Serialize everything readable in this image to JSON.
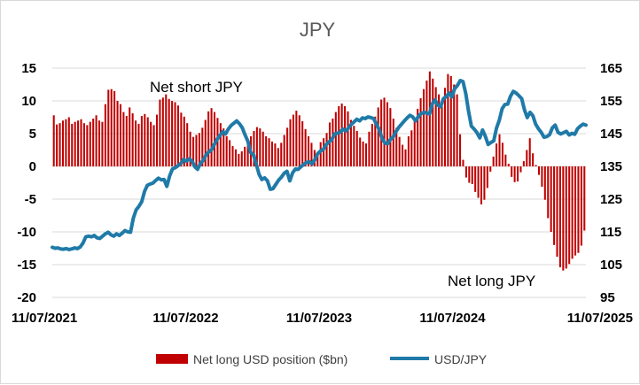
{
  "chart_data": {
    "type": "bar+line",
    "title": "JPY",
    "x_tick_labels": [
      "11/07/2021",
      "11/07/2022",
      "11/07/2023",
      "11/07/2024",
      "11/07/2025"
    ],
    "y_left": {
      "ticks": [
        15,
        10,
        5,
        0,
        -5,
        -10,
        -15,
        -20
      ],
      "ylim": [
        -20,
        15
      ]
    },
    "y_right": {
      "ticks": [
        165,
        155,
        145,
        135,
        125,
        115,
        105,
        95
      ],
      "ylim": [
        95,
        165
      ]
    },
    "grid": true,
    "legend_position": "bottom",
    "annotations": [
      {
        "key": "net_short",
        "text": "Net short JPY"
      },
      {
        "key": "net_long",
        "text": "Net long JPY"
      }
    ],
    "series": [
      {
        "name": "Net long USD position ($bn)",
        "type": "bar",
        "axis": "left",
        "color": "#c00000",
        "values": [
          7.8,
          6.4,
          6.6,
          7.0,
          7.2,
          7.5,
          6.5,
          6.8,
          7.0,
          7.2,
          6.6,
          6.3,
          6.8,
          7.3,
          7.8,
          7.0,
          6.8,
          9.5,
          11.7,
          11.8,
          11.5,
          10.0,
          9.5,
          8.3,
          7.7,
          9.0,
          8.1,
          7.0,
          6.5,
          7.7,
          8.0,
          7.5,
          6.8,
          6.3,
          7.9,
          10.2,
          10.5,
          11.0,
          10.3,
          10.0,
          9.8,
          9.3,
          8.2,
          7.6,
          6.6,
          5.3,
          4.5,
          4.8,
          5.1,
          5.9,
          7.1,
          8.4,
          8.9,
          8.3,
          7.4,
          6.6,
          5.8,
          4.6,
          4.0,
          3.1,
          2.6,
          1.9,
          2.3,
          3.0,
          3.7,
          4.6,
          5.4,
          6.0,
          5.8,
          5.3,
          4.6,
          4.3,
          3.8,
          3.5,
          2.8,
          3.6,
          4.8,
          5.9,
          7.2,
          7.9,
          8.5,
          7.8,
          6.9,
          5.7,
          4.6,
          3.6,
          2.5,
          2.0,
          3.7,
          4.3,
          5.1,
          6.7,
          7.3,
          8.3,
          9.2,
          9.6,
          9.2,
          8.4,
          7.1,
          6.2,
          5.4,
          4.4,
          3.8,
          3.5,
          5.3,
          6.5,
          7.6,
          9.0,
          10.2,
          10.5,
          9.8,
          8.9,
          7.3,
          5.9,
          4.5,
          3.3,
          2.6,
          4.6,
          5.5,
          7.3,
          8.8,
          10.4,
          11.8,
          13.1,
          14.5,
          13.4,
          12.1,
          11.0,
          10.0,
          12.0,
          14.1,
          13.8,
          12.5,
          11.0,
          4.9,
          1.0,
          -1.7,
          -2.5,
          -2.7,
          -3.9,
          -4.8,
          -5.8,
          -5.1,
          -3.3,
          -0.8,
          1.5,
          3.5,
          4.9,
          3.6,
          1.8,
          0.4,
          -1.6,
          -2.4,
          -2.3,
          -0.9,
          0.8,
          2.5,
          4.3,
          2.0,
          0.2,
          -1.3,
          -3.1,
          -5.1,
          -7.9,
          -10.0,
          -12.0,
          -13.8,
          -15.4,
          -15.9,
          -15.6,
          -14.9,
          -14.1,
          -13.6,
          -13.2,
          -12.1,
          -9.8
        ]
      },
      {
        "name": "USD/JPY",
        "type": "line",
        "axis": "right",
        "color": "#1f7aa8",
        "values": [
          110.3,
          110.0,
          110.1,
          109.8,
          109.7,
          109.9,
          109.6,
          109.8,
          110.1,
          109.9,
          110.4,
          111.6,
          113.5,
          113.7,
          113.5,
          113.9,
          113.2,
          113.0,
          113.7,
          114.4,
          114.9,
          114.1,
          113.7,
          114.4,
          113.9,
          114.6,
          115.4,
          115.0,
          114.9,
          119.2,
          121.7,
          122.8,
          124.2,
          127.3,
          129.2,
          129.6,
          129.9,
          130.7,
          131.4,
          130.9,
          131.0,
          128.9,
          132.1,
          134.2,
          134.6,
          135.2,
          135.9,
          137.1,
          136.6,
          137.3,
          136.7,
          134.9,
          134.1,
          135.9,
          136.8,
          138.5,
          139.4,
          140.1,
          141.7,
          143.3,
          144.4,
          145.6,
          144.9,
          146.4,
          147.5,
          148.2,
          148.9,
          148.0,
          146.8,
          144.6,
          142.7,
          139.2,
          138.6,
          135.7,
          132.6,
          131.0,
          131.5,
          130.6,
          128.0,
          128.2,
          129.5,
          130.8,
          131.7,
          132.9,
          133.5,
          130.6,
          133.0,
          134.2,
          134.1,
          134.9,
          135.6,
          136.2,
          136.4,
          135.8,
          137.1,
          138.9,
          139.7,
          140.2,
          141.6,
          142.5,
          143.1,
          144.9,
          145.1,
          145.4,
          146.4,
          145.8,
          146.7,
          147.8,
          148.6,
          149.4,
          148.9,
          149.8,
          149.6,
          150.1,
          149.9,
          149.6,
          147.9,
          146.3,
          143.6,
          142.2,
          141.9,
          143.2,
          144.0,
          145.6,
          146.9,
          147.9,
          148.9,
          149.8,
          150.6,
          150.1,
          148.9,
          150.2,
          151.1,
          151.5,
          151.3,
          151.0,
          154.1,
          155.3,
          153.7,
          153.2,
          155.7,
          156.3,
          157.4,
          156.2,
          158.7,
          159.7,
          161.2,
          160.9,
          157.2,
          151.8,
          147.3,
          146.4,
          145.3,
          143.7,
          146.1,
          144.2,
          141.7,
          142.3,
          142.8,
          146.7,
          149.1,
          152.6,
          153.9,
          154.0,
          156.4,
          157.9,
          157.4,
          156.6,
          155.7,
          152.3,
          149.9,
          151.5,
          150.5,
          147.9,
          146.5,
          145.4,
          143.9,
          144.1,
          144.7,
          146.8,
          147.6,
          145.4,
          144.9,
          145.3,
          145.7,
          144.6,
          145.1,
          144.8,
          146.5,
          147.3,
          147.9,
          147.6
        ]
      }
    ]
  }
}
